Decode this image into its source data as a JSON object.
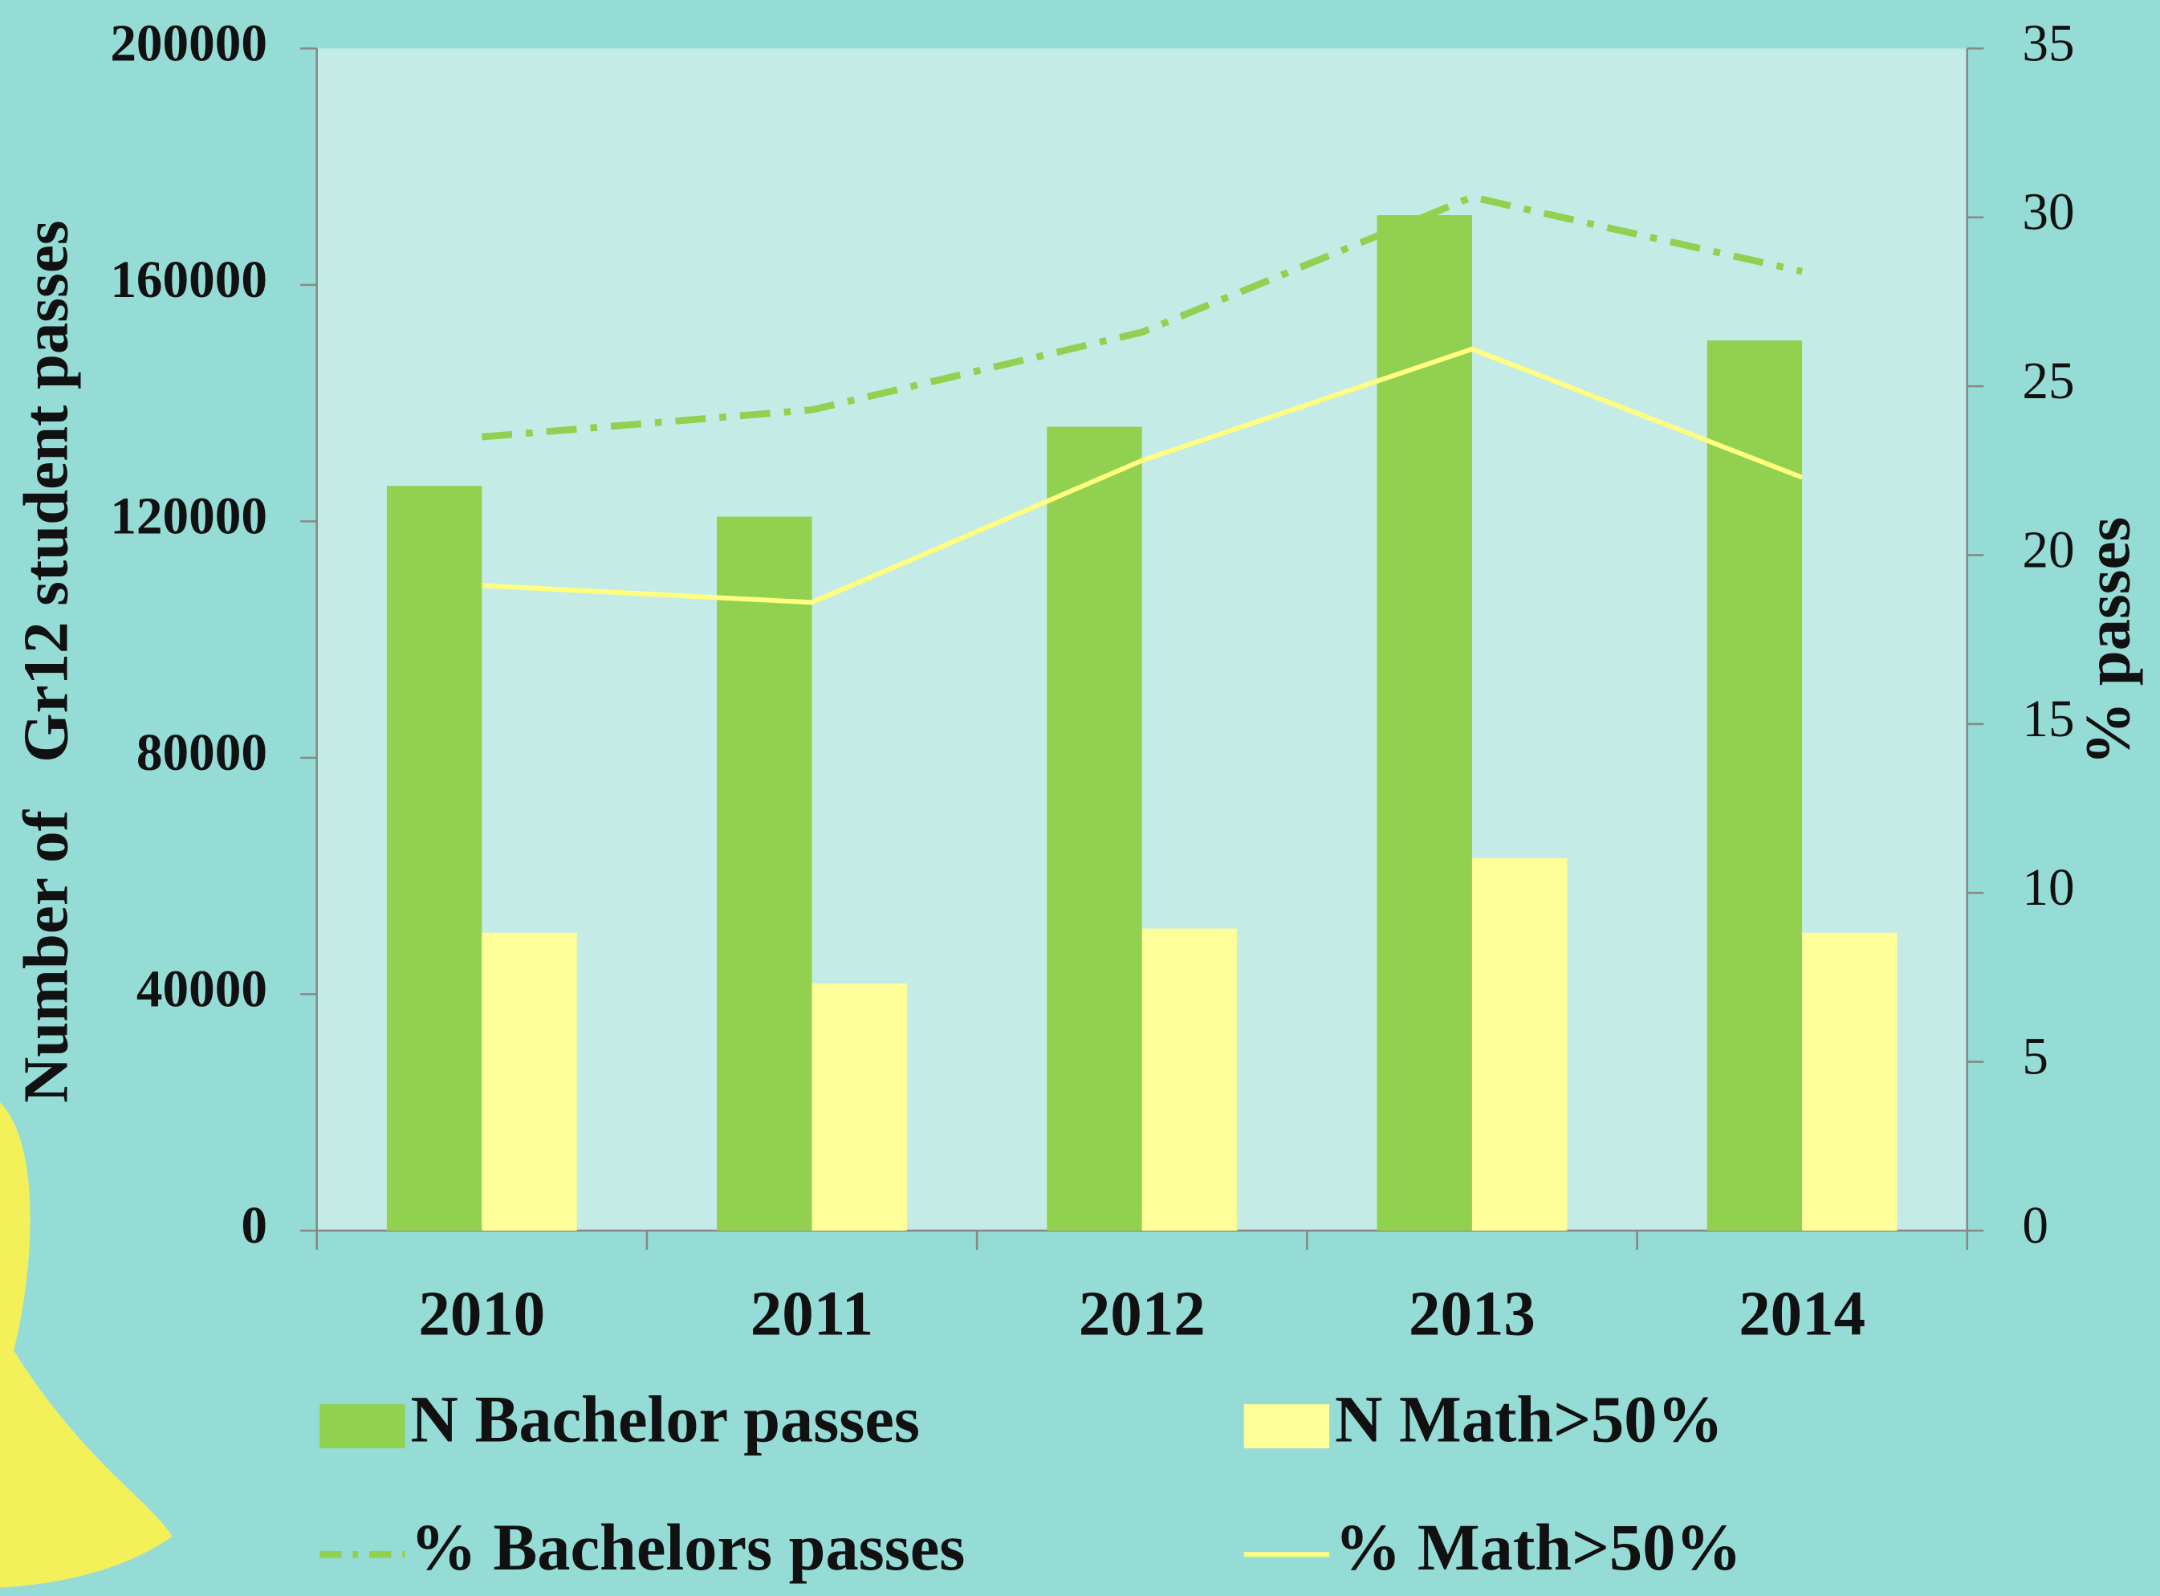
{
  "chart_data": {
    "type": "bar",
    "categories": [
      "2010",
      "2011",
      "2012",
      "2013",
      "2014"
    ],
    "y_label": "Number of   Gr12 student passes",
    "y2_label": "% passes",
    "ylim": [
      0,
      200000
    ],
    "yticks": [
      0,
      40000,
      80000,
      120000,
      160000,
      200000
    ],
    "y2lim": [
      0,
      35
    ],
    "y2ticks": [
      0,
      5,
      10,
      15,
      20,
      25,
      30,
      35
    ],
    "series": [
      {
        "name": "N Bachelor passes",
        "type": "bar",
        "color": "#92d050",
        "values": [
          126000,
          120800,
          136000,
          171800,
          150600
        ]
      },
      {
        "name": "N Math>50%",
        "type": "bar",
        "color": "#ffff99",
        "values": [
          50400,
          41800,
          51100,
          63000,
          50400
        ]
      },
      {
        "name": "% Bachelors passes",
        "type": "line",
        "axis": "y2",
        "line_style": "dashdot",
        "color": "#92d050",
        "values": [
          23.5,
          24.3,
          26.6,
          30.6,
          28.4
        ]
      },
      {
        "name": "% Math>50%",
        "type": "line",
        "axis": "y2",
        "line_style": "solid",
        "color": "#ffff80",
        "values": [
          19.1,
          18.6,
          22.8,
          26.1,
          22.3
        ]
      }
    ]
  }
}
